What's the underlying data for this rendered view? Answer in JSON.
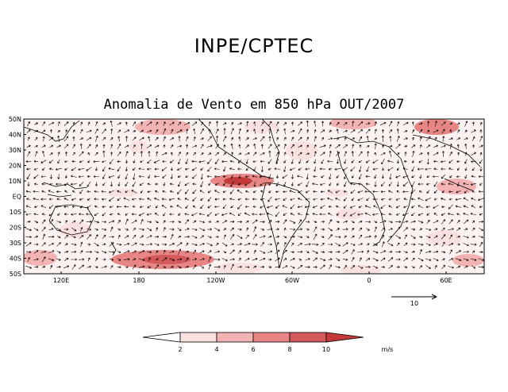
{
  "header": {
    "organization": "INPE/CPTEC",
    "map_title": "Anomalia de Vento em 850 hPa OUT/2007"
  },
  "map": {
    "lat_labels": [
      "50N",
      "40N",
      "30N",
      "20N",
      "10N",
      "EQ",
      "10S",
      "20S",
      "30S",
      "40S",
      "50S"
    ],
    "lon_labels": [
      "120E",
      "180",
      "120W",
      "60W",
      "0",
      "60E"
    ],
    "reference_vector_label": "10"
  },
  "colorbar": {
    "tick_labels": [
      "2",
      "4",
      "6",
      "8",
      "10"
    ],
    "units": "m/s",
    "colors": [
      "#ffffff",
      "#fbe0e0",
      "#f4b3b3",
      "#e88686",
      "#d25a5a",
      "#c43a3a"
    ]
  },
  "chart_data": {
    "type": "heatmap",
    "title": "Anomalia de Vento em 850 hPa OUT/2007",
    "variable": "wind anomaly magnitude at 850 hPa",
    "units": "m/s",
    "levels": [
      2,
      4,
      6,
      8,
      10
    ],
    "lat_range": [
      -50,
      50
    ],
    "lon_range": [
      "90E",
      "90E (wrapped)"
    ],
    "reference_vector_ms": 10
  }
}
